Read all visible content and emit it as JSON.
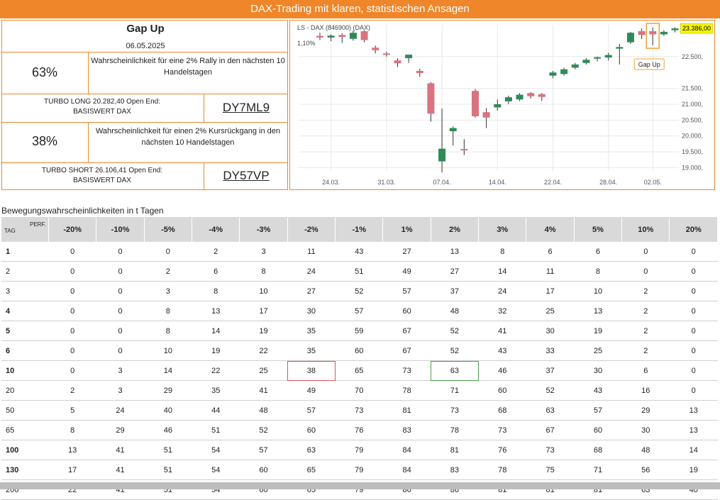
{
  "header": {
    "title": "DAX-Trading mit klaren, statistischen Ansagen"
  },
  "info": {
    "signal": "Gap Up",
    "date": "06.05.2025",
    "up": {
      "pct": "63%",
      "desc": "Wahrscheinlichkeit für eine 2% Rally in den nächsten 10 Handelstagen"
    },
    "long": {
      "label_1": "TURBO LONG 20.282,40 Open End:",
      "label_2": "BASISWERT DAX",
      "code": "DY7ML9"
    },
    "down": {
      "pct": "38%",
      "desc": "Wahrscheinlichkeit für einen 2% Kursrückgang in den nächsten 10 Handelstagen"
    },
    "short": {
      "label_1": "TURBO SHORT 26.106,41 Open End:",
      "label_2": "BASISWERT DAX",
      "code": "DY57VP"
    }
  },
  "chart_data": {
    "type": "candlestick",
    "title": "LS - DAX (846900) (DAX)",
    "subtitle_1": "1,10%",
    "last_price": "23.386,00",
    "annotation": "Gap Up",
    "yticks": [
      "22.500,",
      "21.500,",
      "21.000,",
      "20.500,",
      "20.000,",
      "19.500,",
      "19.000,"
    ],
    "ytick_values": [
      22500,
      21500,
      21000,
      20500,
      20000,
      19500,
      19000
    ],
    "xticks": [
      "24.03.",
      "31.03.",
      "07.04.",
      "14.04.",
      "22.04.",
      "28.04.",
      "02.05."
    ],
    "xtick_index": [
      1,
      6,
      11,
      16,
      21,
      26,
      30
    ],
    "ylim": [
      18900,
      23500
    ],
    "colors": {
      "up": "#2e8b57",
      "down": "#d9737f",
      "wick": "#333333",
      "accent": "#f0a030",
      "price_tag": "#f7f700"
    },
    "candles": [
      {
        "o": 23150,
        "h": 23250,
        "l": 23020,
        "c": 23100
      },
      {
        "o": 23100,
        "h": 23200,
        "l": 22980,
        "c": 23160
      },
      {
        "o": 23180,
        "h": 23230,
        "l": 22930,
        "c": 23120
      },
      {
        "o": 23060,
        "h": 23320,
        "l": 23000,
        "c": 23250
      },
      {
        "o": 23300,
        "h": 23330,
        "l": 22950,
        "c": 23020
      },
      {
        "o": 22780,
        "h": 22850,
        "l": 22600,
        "c": 22700
      },
      {
        "o": 22600,
        "h": 22660,
        "l": 22500,
        "c": 22580
      },
      {
        "o": 22380,
        "h": 22450,
        "l": 22170,
        "c": 22290
      },
      {
        "o": 22450,
        "h": 22560,
        "l": 22300,
        "c": 22560
      },
      {
        "o": 22050,
        "h": 22120,
        "l": 21860,
        "c": 21980
      },
      {
        "o": 21660,
        "h": 21700,
        "l": 20450,
        "c": 20700
      },
      {
        "o": 19200,
        "h": 20860,
        "l": 18850,
        "c": 19600
      },
      {
        "o": 20150,
        "h": 20300,
        "l": 19700,
        "c": 20250
      },
      {
        "o": 19590,
        "h": 19900,
        "l": 19400,
        "c": 19550
      },
      {
        "o": 21420,
        "h": 21480,
        "l": 20580,
        "c": 20620
      },
      {
        "o": 20750,
        "h": 20880,
        "l": 20250,
        "c": 20580
      },
      {
        "o": 20900,
        "h": 21150,
        "l": 20800,
        "c": 21000
      },
      {
        "o": 21090,
        "h": 21270,
        "l": 21000,
        "c": 21220
      },
      {
        "o": 21150,
        "h": 21350,
        "l": 21100,
        "c": 21300
      },
      {
        "o": 21350,
        "h": 21380,
        "l": 21180,
        "c": 21250
      },
      {
        "o": 21320,
        "h": 21350,
        "l": 21100,
        "c": 21230
      },
      {
        "o": 21900,
        "h": 22050,
        "l": 21820,
        "c": 22000
      },
      {
        "o": 21950,
        "h": 22150,
        "l": 21900,
        "c": 22100
      },
      {
        "o": 22150,
        "h": 22300,
        "l": 22100,
        "c": 22250
      },
      {
        "o": 22300,
        "h": 22450,
        "l": 22250,
        "c": 22400
      },
      {
        "o": 22450,
        "h": 22500,
        "l": 22350,
        "c": 22480
      },
      {
        "o": 22470,
        "h": 22620,
        "l": 22380,
        "c": 22550
      },
      {
        "o": 22750,
        "h": 22900,
        "l": 22250,
        "c": 22800
      },
      {
        "o": 22950,
        "h": 23280,
        "l": 22900,
        "c": 23250
      },
      {
        "o": 23300,
        "h": 23380,
        "l": 23050,
        "c": 23180
      },
      {
        "o": 23300,
        "h": 23420,
        "l": 22850,
        "c": 23200
      },
      {
        "o": 23200,
        "h": 23330,
        "l": 23150,
        "c": 23280
      },
      {
        "o": 23330,
        "h": 23420,
        "l": 23260,
        "c": 23386
      }
    ],
    "gap_up_index": 30
  },
  "table": {
    "caption": "Bewegungswahrscheinlichkeiten in t Tagen",
    "corner_tag": "TAG",
    "corner_perf": "PERF.",
    "columns": [
      "-20%",
      "-10%",
      "-5%",
      "-4%",
      "-3%",
      "-2%",
      "-1%",
      "1%",
      "2%",
      "3%",
      "4%",
      "5%",
      "10%",
      "20%"
    ],
    "rows": [
      {
        "t": "1",
        "v": [
          "0",
          "0",
          "0",
          "2",
          "3",
          "11",
          "43",
          "27",
          "13",
          "8",
          "6",
          "6",
          "0",
          "0"
        ]
      },
      {
        "t": "2",
        "v": [
          "0",
          "0",
          "2",
          "6",
          "8",
          "24",
          "51",
          "49",
          "27",
          "14",
          "11",
          "8",
          "0",
          "0"
        ]
      },
      {
        "t": "3",
        "v": [
          "0",
          "0",
          "3",
          "8",
          "10",
          "27",
          "52",
          "57",
          "37",
          "24",
          "17",
          "10",
          "2",
          "0"
        ]
      },
      {
        "t": "4",
        "v": [
          "0",
          "0",
          "8",
          "13",
          "17",
          "30",
          "57",
          "60",
          "48",
          "32",
          "25",
          "13",
          "2",
          "0"
        ]
      },
      {
        "t": "5",
        "v": [
          "0",
          "0",
          "8",
          "14",
          "19",
          "35",
          "59",
          "67",
          "52",
          "41",
          "30",
          "19",
          "2",
          "0"
        ]
      },
      {
        "t": "6",
        "v": [
          "0",
          "0",
          "10",
          "19",
          "22",
          "35",
          "60",
          "67",
          "52",
          "43",
          "33",
          "25",
          "2",
          "0"
        ]
      },
      {
        "t": "10",
        "v": [
          "0",
          "3",
          "14",
          "22",
          "25",
          "38",
          "65",
          "73",
          "63",
          "46",
          "37",
          "30",
          "6",
          "0"
        ]
      },
      {
        "t": "20",
        "v": [
          "2",
          "3",
          "29",
          "35",
          "41",
          "49",
          "70",
          "78",
          "71",
          "60",
          "52",
          "43",
          "16",
          "0"
        ]
      },
      {
        "t": "50",
        "v": [
          "5",
          "24",
          "40",
          "44",
          "48",
          "57",
          "73",
          "81",
          "73",
          "68",
          "63",
          "57",
          "29",
          "13"
        ]
      },
      {
        "t": "65",
        "v": [
          "8",
          "29",
          "46",
          "51",
          "52",
          "60",
          "76",
          "83",
          "78",
          "73",
          "67",
          "60",
          "30",
          "13"
        ]
      },
      {
        "t": "100",
        "v": [
          "13",
          "41",
          "51",
          "54",
          "57",
          "63",
          "79",
          "84",
          "81",
          "76",
          "73",
          "68",
          "48",
          "14"
        ]
      },
      {
        "t": "130",
        "v": [
          "17",
          "41",
          "51",
          "54",
          "60",
          "65",
          "79",
          "84",
          "83",
          "78",
          "75",
          "71",
          "56",
          "19"
        ]
      },
      {
        "t": "200",
        "v": [
          "22",
          "41",
          "51",
          "54",
          "60",
          "65",
          "79",
          "86",
          "86",
          "81",
          "81",
          "81",
          "63",
          "40"
        ]
      }
    ]
  }
}
